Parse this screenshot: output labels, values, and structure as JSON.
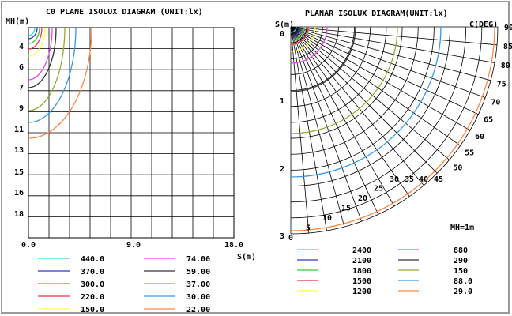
{
  "left": {
    "title": "C0 PLANE ISOLUX DIAGRAM (UNIT:lx)",
    "y_axis_label": "MH(m)",
    "x_axis_label": "S(m)",
    "y_ticks": [
      "4",
      "6",
      "7",
      "9",
      "11",
      "13",
      "15",
      "16",
      "18"
    ],
    "x_ticks": [
      "0.0",
      "9.0",
      "18.0"
    ],
    "legend": [
      {
        "value": "440.0",
        "color": "#33e0e0"
      },
      {
        "value": "370.0",
        "color": "#3333cc"
      },
      {
        "value": "300.0",
        "color": "#33cc33"
      },
      {
        "value": "220.0",
        "color": "#ee3344"
      },
      {
        "value": "150.0",
        "color": "#ffff44"
      },
      {
        "value": "74.00",
        "color": "#ee44ee"
      },
      {
        "value": "59.00",
        "color": "#333333"
      },
      {
        "value": "37.00",
        "color": "#99aa33"
      },
      {
        "value": "30.00",
        "color": "#3399ee"
      },
      {
        "value": "22.00",
        "color": "#ff8844"
      }
    ]
  },
  "right": {
    "title": "PLANAR ISOLUX DIAGRAM(UNIT:lx)",
    "s_label": "S(m)",
    "c_label": "C(DEG)",
    "mh_note": "MH=1m",
    "radial_ticks": [
      "0",
      "1",
      "2",
      "3"
    ],
    "bottom_ticks": [
      "0",
      "5",
      "10",
      "15",
      "20",
      "25",
      "30",
      "35",
      "40",
      "45",
      "50",
      "55",
      "60",
      "65",
      "70",
      "75",
      "80",
      "85",
      "90"
    ],
    "legend": [
      {
        "value": "2400",
        "color": "#33e0e0"
      },
      {
        "value": "2100",
        "color": "#3333cc"
      },
      {
        "value": "1800",
        "color": "#33cc33"
      },
      {
        "value": "1500",
        "color": "#ee3344"
      },
      {
        "value": "1200",
        "color": "#ffff44"
      },
      {
        "value": "880",
        "color": "#ee44ee"
      },
      {
        "value": "290",
        "color": "#333333"
      },
      {
        "value": "150",
        "color": "#99aa33"
      },
      {
        "value": "88.0",
        "color": "#3399ee"
      },
      {
        "value": "29.0",
        "color": "#ff8844"
      }
    ]
  }
}
